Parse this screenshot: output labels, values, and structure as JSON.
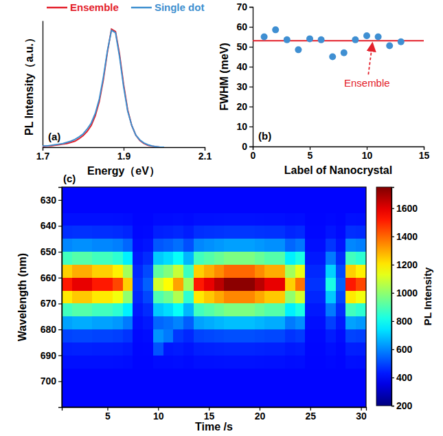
{
  "chart_data": [
    {
      "type": "line",
      "panel_label": "(a)",
      "x_label": "Energy（eV）",
      "y_label": "PL Intensity（a.u.）",
      "x": [
        1.7,
        1.71,
        1.72,
        1.73,
        1.74,
        1.75,
        1.76,
        1.77,
        1.78,
        1.79,
        1.8,
        1.81,
        1.82,
        1.83,
        1.84,
        1.85,
        1.86,
        1.87,
        1.88,
        1.89,
        1.9,
        1.91,
        1.92,
        1.93,
        1.94,
        1.95,
        1.96,
        1.97,
        1.98,
        1.99,
        2.0
      ],
      "series": [
        {
          "name": "Ensemble",
          "color": "#e3202b",
          "values": [
            0.005,
            0.008,
            0.01,
            0.015,
            0.02,
            0.025,
            0.03,
            0.04,
            0.05,
            0.07,
            0.095,
            0.13,
            0.18,
            0.26,
            0.38,
            0.56,
            0.79,
            0.98,
            0.96,
            0.77,
            0.52,
            0.31,
            0.18,
            0.1,
            0.055,
            0.03,
            0.015,
            0.008,
            0.004,
            0.0,
            0.0
          ]
        },
        {
          "name": "Single dot",
          "color": "#3d8fcf",
          "values": [
            0.01,
            0.01,
            0.015,
            0.02,
            0.025,
            0.03,
            0.04,
            0.05,
            0.065,
            0.085,
            0.11,
            0.15,
            0.2,
            0.28,
            0.4,
            0.58,
            0.8,
            0.97,
            0.95,
            0.75,
            0.5,
            0.3,
            0.18,
            0.1,
            0.06,
            0.035,
            0.02,
            0.01,
            0.005,
            0.0,
            0.0
          ]
        }
      ],
      "xlim": [
        1.7,
        2.1
      ],
      "xticks": [
        1.7,
        1.9,
        2.1
      ],
      "ylim": [
        0,
        1.05
      ],
      "tick_labels": "x",
      "legend": "top"
    },
    {
      "type": "scatter",
      "panel_label": "(b)",
      "x_label": "Label of Nanocrystal",
      "y_label": "FWHM (meV)",
      "x": [
        1,
        2,
        3,
        4,
        5,
        6,
        7,
        8,
        9,
        10,
        11,
        12,
        13
      ],
      "values": [
        55,
        58.5,
        53.5,
        48.5,
        54,
        53.5,
        45,
        47,
        53.5,
        55.5,
        55,
        50.5,
        52.5
      ],
      "color": "#3f8fd2",
      "marker": "circle",
      "xlim": [
        0,
        15
      ],
      "xticks": [
        0,
        5,
        10,
        15
      ],
      "ylim": [
        0,
        70
      ],
      "yticks": [
        0,
        10,
        20,
        30,
        40,
        50,
        60,
        70
      ],
      "ensemble_fwhm": 53,
      "annotation": "Ensemble"
    },
    {
      "type": "heatmap",
      "panel_label": "(c)",
      "x_label": "Time /s",
      "y_label": "Wavelength (nm)",
      "colorbar_label": "PL Intensity",
      "x": [
        1,
        2,
        3,
        4,
        5,
        6,
        7,
        8,
        9,
        10,
        11,
        12,
        13,
        14,
        15,
        16,
        17,
        18,
        19,
        20,
        21,
        22,
        23,
        24,
        25,
        26,
        27,
        28,
        29,
        30
      ],
      "y": [
        627.5,
        632.5,
        637.5,
        642.5,
        647.5,
        652.5,
        657.5,
        662.5,
        667.5,
        672.5,
        677.5,
        682.5,
        687.5,
        692.5,
        697.5,
        702.5,
        707.5
      ],
      "values": [
        [
          400,
          400,
          400,
          400,
          400,
          400,
          400,
          400,
          400,
          400,
          400,
          400,
          400,
          400,
          400,
          400,
          400,
          400,
          400,
          400,
          400,
          400,
          400,
          400,
          400,
          400,
          400,
          400,
          400,
          400
        ],
        [
          400,
          400,
          400,
          400,
          400,
          400,
          400,
          400,
          400,
          400,
          400,
          400,
          400,
          400,
          400,
          400,
          400,
          400,
          400,
          400,
          400,
          400,
          400,
          400,
          400,
          400,
          400,
          400,
          400,
          400
        ],
        [
          416,
          417,
          417,
          416,
          416,
          415,
          412,
          401,
          402,
          410,
          411,
          413,
          409,
          416,
          417,
          418,
          419,
          419,
          419,
          418,
          417,
          417,
          412,
          414,
          401,
          401,
          406,
          402,
          416,
          415
        ],
        [
          464,
          468,
          468,
          464,
          464,
          460,
          448,
          404,
          408,
          440,
          444,
          452,
          436,
          464,
          468,
          472,
          476,
          476,
          476,
          472,
          468,
          468,
          448,
          456,
          404,
          404,
          424,
          408,
          464,
          460
        ],
        [
          600,
          613,
          613,
          600,
          600,
          588,
          550,
          413,
          425,
          525,
          538,
          563,
          513,
          600,
          613,
          625,
          638,
          638,
          638,
          625,
          613,
          613,
          550,
          575,
          413,
          413,
          475,
          425,
          600,
          588
        ],
        [
          880,
          910,
          910,
          880,
          880,
          850,
          760,
          430,
          460,
          700,
          730,
          790,
          670,
          880,
          910,
          940,
          970,
          970,
          970,
          940,
          910,
          910,
          760,
          820,
          430,
          430,
          580,
          460,
          880,
          850
        ],
        [
          1240,
          1293,
          1293,
          1240,
          1240,
          1188,
          1030,
          453,
          505,
          925,
          978,
          1083,
          873,
          1240,
          1293,
          1345,
          1398,
          1398,
          1398,
          1345,
          1293,
          1293,
          1030,
          1135,
          453,
          453,
          715,
          505,
          1240,
          1188
        ],
        [
          1520,
          1590,
          1590,
          1520,
          1520,
          1450,
          1240,
          470,
          540,
          1100,
          1170,
          1310,
          1030,
          1520,
          1590,
          1660,
          1730,
          1730,
          1730,
          1660,
          1590,
          1590,
          1240,
          1380,
          470,
          470,
          820,
          540,
          1520,
          1450
        ],
        [
          1200,
          1250,
          1250,
          1200,
          1200,
          1150,
          1000,
          450,
          500,
          900,
          950,
          1050,
          850,
          1200,
          1250,
          1300,
          1350,
          1350,
          1350,
          1300,
          1250,
          1250,
          1000,
          1100,
          450,
          450,
          700,
          500,
          1200,
          1150
        ],
        [
          880,
          910,
          910,
          880,
          880,
          850,
          760,
          430,
          460,
          700,
          730,
          790,
          670,
          880,
          910,
          940,
          970,
          970,
          970,
          940,
          910,
          910,
          760,
          820,
          430,
          430,
          580,
          460,
          880,
          850
        ],
        [
          640,
          655,
          655,
          640,
          640,
          625,
          580,
          415,
          430,
          550,
          565,
          595,
          535,
          640,
          655,
          670,
          685,
          685,
          685,
          670,
          655,
          655,
          580,
          610,
          415,
          415,
          490,
          430,
          640,
          625
        ],
        [
          496,
          502,
          502,
          496,
          496,
          490,
          472,
          406,
          412,
          620,
          580,
          478,
          454,
          496,
          502,
          508,
          514,
          514,
          514,
          508,
          502,
          502,
          472,
          484,
          406,
          406,
          436,
          412,
          496,
          490
        ],
        [
          440,
          443,
          443,
          440,
          440,
          438,
          430,
          403,
          405,
          520,
          428,
          433,
          423,
          440,
          443,
          445,
          448,
          448,
          448,
          445,
          443,
          443,
          430,
          435,
          403,
          403,
          415,
          405,
          440,
          438
        ],
        [
          416,
          417,
          417,
          416,
          416,
          415,
          412,
          401,
          402,
          410,
          411,
          413,
          409,
          416,
          417,
          418,
          419,
          419,
          419,
          418,
          417,
          417,
          412,
          414,
          401,
          401,
          406,
          402,
          416,
          415
        ],
        [
          400,
          400,
          400,
          400,
          400,
          400,
          400,
          400,
          400,
          400,
          400,
          400,
          400,
          400,
          400,
          400,
          400,
          400,
          400,
          400,
          400,
          400,
          400,
          400,
          400,
          400,
          400,
          400,
          400,
          400
        ],
        [
          400,
          400,
          400,
          400,
          400,
          400,
          400,
          400,
          400,
          400,
          400,
          400,
          400,
          400,
          400,
          400,
          400,
          400,
          400,
          400,
          400,
          400,
          400,
          400,
          400,
          400,
          400,
          400,
          400,
          400
        ],
        [
          400,
          400,
          400,
          400,
          400,
          400,
          400,
          400,
          400,
          400,
          400,
          400,
          400,
          400,
          400,
          400,
          400,
          400,
          400,
          400,
          400,
          400,
          400,
          400,
          400,
          400,
          400,
          400,
          400,
          400
        ]
      ],
      "xlim": [
        0.5,
        30.5
      ],
      "xticks": [
        5,
        10,
        15,
        20,
        25,
        30
      ],
      "ylim": [
        625,
        710
      ],
      "yticks": [
        630,
        640,
        650,
        660,
        670,
        680,
        690,
        700
      ],
      "colorbar_lim": [
        200,
        1750
      ],
      "colorbar_ticks": [
        200,
        400,
        600,
        800,
        1000,
        1200,
        1400,
        1600
      ]
    }
  ]
}
